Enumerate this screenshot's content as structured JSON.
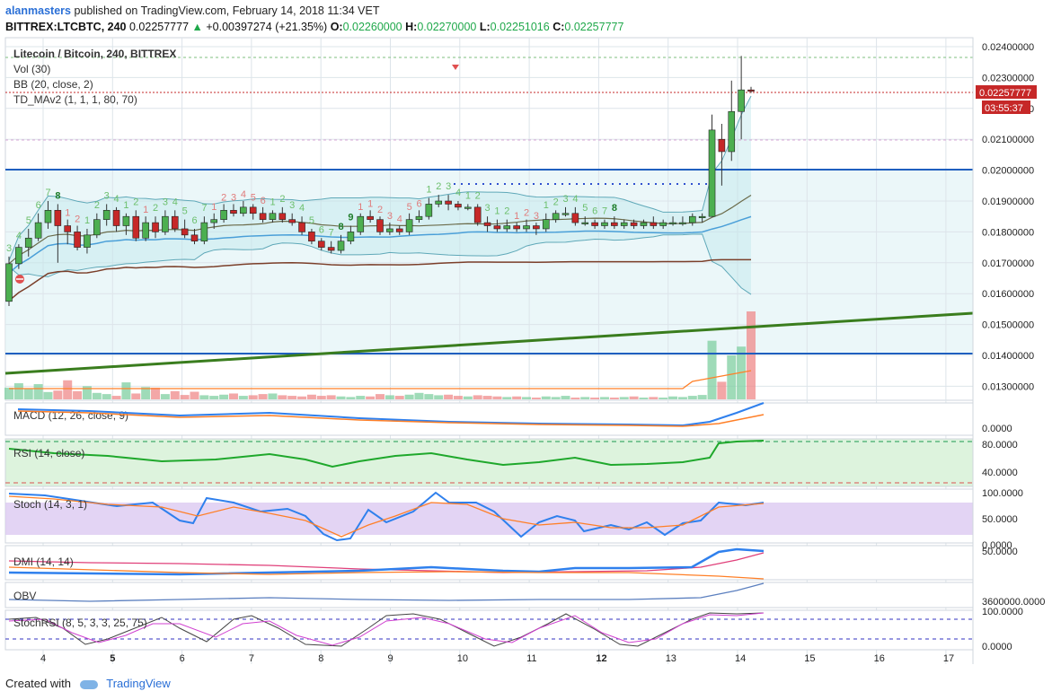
{
  "header": {
    "user": "alanmasters",
    "published": "published on TradingView.com, February 14, 2018 11:34 VET",
    "symbol": "BITTREX:LTCBTC, 240",
    "last": "0.02257777",
    "arrow": "▲",
    "change": "+0.00397274 (+21.35%)",
    "o_label": "O:",
    "o_value": "0.02260000",
    "h_label": "H:",
    "h_value": "0.02270000",
    "l_label": "L:",
    "l_value": "0.02251016",
    "c_label": "C:",
    "c_value": "0.02257777"
  },
  "legend": {
    "title": "Litecoin / Bitcoin, 240, BITTREX",
    "vol": "Vol (30)",
    "bb": "BB (20, close, 2)",
    "td": "TD_MAv2 (1, 1, 1, 80, 70)"
  },
  "price_tag": "0.02257777",
  "timer_tag": "03:55:37",
  "panes": {
    "macd": "MACD (12, 26, close, 9)",
    "rsi": "RSI (14, close)",
    "stoch": "Stoch (14, 3, 1)",
    "dmi": "DMI (14, 14)",
    "obv": "OBV",
    "stochrsi": "StochRSI (8, 5, 3, 3, 25, 75)"
  },
  "footer": {
    "created": "Created with",
    "brand": "TradingView"
  },
  "colors": {
    "up": "#4caf50",
    "down": "#c62828",
    "bb": "#5fa8b8",
    "trend": "#3a7d1e",
    "level": "#1f5fbf"
  },
  "chart_data": {
    "type": "candlestick",
    "symbol": "LTCBTC",
    "x_ticks": [
      "4",
      "5",
      "6",
      "7",
      "8",
      "9",
      "10",
      "11",
      "12",
      "13",
      "14",
      "15",
      "16",
      "17"
    ],
    "y_ticks": [
      "0.02400000",
      "0.02300000",
      "0.02200000",
      "0.02100000",
      "0.02000000",
      "0.01900000",
      "0.01800000",
      "0.01700000",
      "0.01600000",
      "0.01500000",
      "0.01400000",
      "0.01300000"
    ],
    "ylim": [
      0.0126,
      0.0244
    ],
    "macd_ticks": [
      "0.0000"
    ],
    "rsi_ticks": [
      "80.0000",
      "40.0000"
    ],
    "stoch_ticks": [
      "100.0000",
      "50.0000",
      "0.0000"
    ],
    "dmi_ticks": [
      "50.0000"
    ],
    "obv_ticks": [
      "3600000.0000"
    ],
    "stochrsi_ticks": [
      "100.0000",
      "0.0000"
    ],
    "levels": [
      0.0201,
      0.01417
    ],
    "candles": [
      [
        0.01575,
        0.01697,
        0.0156,
        0.0172
      ],
      [
        0.01697,
        0.0175,
        0.0168,
        0.0176
      ],
      [
        0.0175,
        0.0178,
        0.0172,
        0.0181
      ],
      [
        0.0178,
        0.0183,
        0.0177,
        0.0186
      ],
      [
        0.0183,
        0.0187,
        0.0181,
        0.019
      ],
      [
        0.0187,
        0.0182,
        0.017,
        0.0189
      ],
      [
        0.0182,
        0.018,
        0.0176,
        0.0184
      ],
      [
        0.018,
        0.0175,
        0.0174,
        0.0182
      ],
      [
        0.0175,
        0.0179,
        0.0173,
        0.0181
      ],
      [
        0.0179,
        0.0184,
        0.0178,
        0.0186
      ],
      [
        0.0184,
        0.0187,
        0.0182,
        0.0189
      ],
      [
        0.0187,
        0.0182,
        0.018,
        0.0188
      ],
      [
        0.0182,
        0.0185,
        0.0179,
        0.0186
      ],
      [
        0.0185,
        0.0178,
        0.0177,
        0.0187
      ],
      [
        0.0178,
        0.0183,
        0.0177,
        0.0185
      ],
      [
        0.0183,
        0.018,
        0.0178,
        0.0185
      ],
      [
        0.018,
        0.0185,
        0.0179,
        0.0187
      ],
      [
        0.0185,
        0.0181,
        0.018,
        0.0187
      ],
      [
        0.0181,
        0.0179,
        0.0178,
        0.0184
      ],
      [
        0.0179,
        0.0177,
        0.0176,
        0.0181
      ],
      [
        0.0177,
        0.0183,
        0.0176,
        0.0185
      ],
      [
        0.0183,
        0.0184,
        0.0181,
        0.0186
      ],
      [
        0.0184,
        0.0187,
        0.0183,
        0.0189
      ],
      [
        0.0187,
        0.0186,
        0.0185,
        0.0189
      ],
      [
        0.0186,
        0.0188,
        0.0185,
        0.019
      ],
      [
        0.0188,
        0.0186,
        0.0184,
        0.0189
      ],
      [
        0.0186,
        0.0184,
        0.0183,
        0.0188
      ],
      [
        0.0184,
        0.0186,
        0.0183,
        0.0187
      ],
      [
        0.0186,
        0.0184,
        0.0183,
        0.0188
      ],
      [
        0.0184,
        0.0183,
        0.0182,
        0.0186
      ],
      [
        0.0183,
        0.018,
        0.0179,
        0.0185
      ],
      [
        0.018,
        0.0177,
        0.0176,
        0.0181
      ],
      [
        0.0177,
        0.0175,
        0.0174,
        0.0178
      ],
      [
        0.0175,
        0.0174,
        0.0173,
        0.0177
      ],
      [
        0.0174,
        0.0177,
        0.0173,
        0.0179
      ],
      [
        0.0177,
        0.018,
        0.0176,
        0.0182
      ],
      [
        0.018,
        0.0185,
        0.0179,
        0.0186
      ],
      [
        0.0185,
        0.0184,
        0.0183,
        0.0187
      ],
      [
        0.0184,
        0.018,
        0.0179,
        0.0185
      ],
      [
        0.018,
        0.0181,
        0.0179,
        0.0183
      ],
      [
        0.0181,
        0.018,
        0.0179,
        0.0182
      ],
      [
        0.018,
        0.0184,
        0.0179,
        0.0186
      ],
      [
        0.0184,
        0.0185,
        0.0183,
        0.0187
      ],
      [
        0.0185,
        0.0189,
        0.0184,
        0.0191
      ],
      [
        0.0189,
        0.019,
        0.0188,
        0.0192
      ],
      [
        0.019,
        0.0189,
        0.0187,
        0.0192
      ],
      [
        0.0189,
        0.0188,
        0.0187,
        0.019
      ],
      [
        0.0188,
        0.0188,
        0.0187,
        0.0189
      ],
      [
        0.0188,
        0.0183,
        0.0182,
        0.0189
      ],
      [
        0.0183,
        0.0182,
        0.018,
        0.0185
      ],
      [
        0.0182,
        0.0181,
        0.018,
        0.0184
      ],
      [
        0.0181,
        0.0182,
        0.018,
        0.0184
      ],
      [
        0.0182,
        0.0181,
        0.018,
        0.0183
      ],
      [
        0.0181,
        0.0182,
        0.018,
        0.0184
      ],
      [
        0.0182,
        0.0181,
        0.0179,
        0.0183
      ],
      [
        0.0181,
        0.0184,
        0.018,
        0.0186
      ],
      [
        0.0184,
        0.0186,
        0.0183,
        0.0187
      ],
      [
        0.0186,
        0.0186,
        0.0185,
        0.0188
      ],
      [
        0.0186,
        0.0183,
        0.0182,
        0.0188
      ],
      [
        0.0183,
        0.0183,
        0.0182,
        0.0185
      ],
      [
        0.0183,
        0.0182,
        0.0181,
        0.0184
      ],
      [
        0.0182,
        0.0183,
        0.0181,
        0.0184
      ],
      [
        0.0183,
        0.0182,
        0.0181,
        0.0185
      ],
      [
        0.0182,
        0.0183,
        0.0181,
        0.0184
      ],
      [
        0.0183,
        0.0182,
        0.0181,
        0.0184
      ],
      [
        0.0182,
        0.0183,
        0.0181,
        0.0184
      ],
      [
        0.0183,
        0.0182,
        0.0181,
        0.0185
      ],
      [
        0.0182,
        0.0183,
        0.0181,
        0.0184
      ],
      [
        0.0183,
        0.0183,
        0.0182,
        0.0185
      ],
      [
        0.0183,
        0.0183,
        0.0182,
        0.0185
      ],
      [
        0.0183,
        0.0185,
        0.0182,
        0.0186
      ],
      [
        0.0185,
        0.0185,
        0.0183,
        0.0186
      ],
      [
        0.0185,
        0.0213,
        0.0185,
        0.0218
      ],
      [
        0.021,
        0.0206,
        0.0195,
        0.0215
      ],
      [
        0.0206,
        0.0219,
        0.0203,
        0.0229
      ],
      [
        0.0219,
        0.0226,
        0.021,
        0.0237
      ],
      [
        0.0226,
        0.02258,
        0.0225,
        0.0227
      ]
    ],
    "volume": [
      40,
      55,
      35,
      52,
      25,
      30,
      65,
      28,
      45,
      22,
      18,
      12,
      58,
      20,
      42,
      40,
      18,
      28,
      15,
      26,
      14,
      12,
      16,
      20,
      12,
      14,
      18,
      20,
      14,
      12,
      10,
      16,
      12,
      14,
      10,
      8,
      12,
      10,
      18,
      14,
      12,
      16,
      22,
      18,
      14,
      16,
      12,
      10,
      14,
      12,
      10,
      8,
      10,
      8,
      6,
      10,
      8,
      12,
      6,
      8,
      6,
      8,
      6,
      8,
      10,
      6,
      8,
      6,
      10,
      8,
      12,
      15,
      200,
      60,
      150,
      180,
      300
    ],
    "td_counts": [
      {
        "i": 0,
        "n": "3",
        "c": "up"
      },
      {
        "i": 1,
        "n": "4",
        "c": "up"
      },
      {
        "i": 2,
        "n": "5",
        "c": "up"
      },
      {
        "i": 3,
        "n": "6",
        "c": "up"
      },
      {
        "i": 4,
        "n": "7",
        "c": "up"
      },
      {
        "i": 5,
        "n": "8",
        "c": "upstrong"
      },
      {
        "i": 6,
        "n": "1",
        "c": "dn"
      },
      {
        "i": 7,
        "n": "2",
        "c": "dn"
      },
      {
        "i": 8,
        "n": "1",
        "c": "up"
      },
      {
        "i": 9,
        "n": "2",
        "c": "up"
      },
      {
        "i": 10,
        "n": "3",
        "c": "up"
      },
      {
        "i": 11,
        "n": "4",
        "c": "up"
      },
      {
        "i": 12,
        "n": "1",
        "c": "up"
      },
      {
        "i": 13,
        "n": "2",
        "c": "up"
      },
      {
        "i": 14,
        "n": "1",
        "c": "dn"
      },
      {
        "i": 15,
        "n": "2",
        "c": "up"
      },
      {
        "i": 16,
        "n": "3",
        "c": "up"
      },
      {
        "i": 17,
        "n": "4",
        "c": "up"
      },
      {
        "i": 18,
        "n": "5",
        "c": "up"
      },
      {
        "i": 19,
        "n": "6",
        "c": "up"
      },
      {
        "i": 20,
        "n": "7",
        "c": "up"
      },
      {
        "i": 21,
        "n": "1",
        "c": "dn"
      },
      {
        "i": 22,
        "n": "2",
        "c": "dn"
      },
      {
        "i": 23,
        "n": "3",
        "c": "dn"
      },
      {
        "i": 24,
        "n": "4",
        "c": "dn"
      },
      {
        "i": 25,
        "n": "5",
        "c": "dn"
      },
      {
        "i": 26,
        "n": "6",
        "c": "dn"
      },
      {
        "i": 27,
        "n": "1",
        "c": "up"
      },
      {
        "i": 28,
        "n": "2",
        "c": "up"
      },
      {
        "i": 29,
        "n": "3",
        "c": "up"
      },
      {
        "i": 30,
        "n": "4",
        "c": "up"
      },
      {
        "i": 31,
        "n": "5",
        "c": "up"
      },
      {
        "i": 32,
        "n": "6",
        "c": "up"
      },
      {
        "i": 33,
        "n": "7",
        "c": "up"
      },
      {
        "i": 34,
        "n": "8",
        "c": "upstrong"
      },
      {
        "i": 35,
        "n": "9",
        "c": "upstrong"
      },
      {
        "i": 36,
        "n": "1",
        "c": "dn"
      },
      {
        "i": 37,
        "n": "1",
        "c": "dn"
      },
      {
        "i": 38,
        "n": "2",
        "c": "dn"
      },
      {
        "i": 39,
        "n": "3",
        "c": "dn"
      },
      {
        "i": 40,
        "n": "4",
        "c": "dn"
      },
      {
        "i": 41,
        "n": "5",
        "c": "dn"
      },
      {
        "i": 42,
        "n": "6",
        "c": "dn"
      },
      {
        "i": 43,
        "n": "1",
        "c": "up"
      },
      {
        "i": 44,
        "n": "2",
        "c": "up"
      },
      {
        "i": 45,
        "n": "3",
        "c": "up"
      },
      {
        "i": 46,
        "n": "4",
        "c": "up"
      },
      {
        "i": 47,
        "n": "1",
        "c": "up"
      },
      {
        "i": 48,
        "n": "2",
        "c": "up"
      },
      {
        "i": 49,
        "n": "3",
        "c": "up"
      },
      {
        "i": 50,
        "n": "1",
        "c": "up"
      },
      {
        "i": 51,
        "n": "2",
        "c": "up"
      },
      {
        "i": 52,
        "n": "1",
        "c": "dn"
      },
      {
        "i": 53,
        "n": "2",
        "c": "dn"
      },
      {
        "i": 54,
        "n": "3",
        "c": "dn"
      },
      {
        "i": 55,
        "n": "1",
        "c": "up"
      },
      {
        "i": 56,
        "n": "2",
        "c": "up"
      },
      {
        "i": 57,
        "n": "3",
        "c": "up"
      },
      {
        "i": 58,
        "n": "4",
        "c": "up"
      },
      {
        "i": 59,
        "n": "5",
        "c": "up"
      },
      {
        "i": 60,
        "n": "6",
        "c": "up"
      },
      {
        "i": 61,
        "n": "7",
        "c": "up"
      },
      {
        "i": 62,
        "n": "8",
        "c": "upstrong"
      }
    ]
  }
}
